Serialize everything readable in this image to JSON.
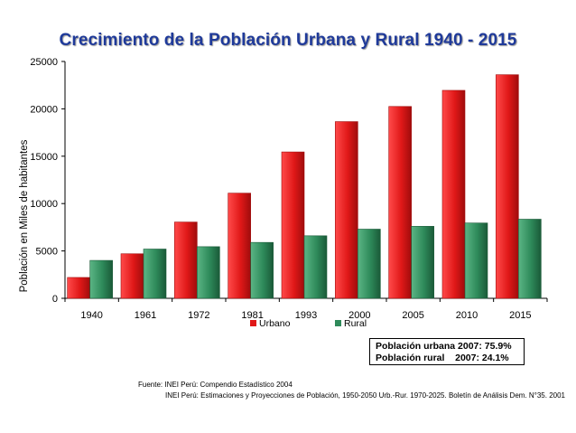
{
  "title": "Crecimiento de la Población Urbana y Rural 1940 - 2015",
  "info_box": {
    "line1": "Población urbana 2007: 75.9%",
    "line2": "Población rural    2007: 24.1%"
  },
  "source": {
    "line1": "Fuente: INEI Perú: Compendio Estadístico 2004",
    "line2": "INEI Perú: Estimaciones y Proyecciones de Población, 1950-2050 Urb.-Rur. 1970-2025. Boletín de Análisis Dem. N°35. 2001"
  },
  "colors": {
    "urbano": "#e01818",
    "urbano_dark": "#a00c0c",
    "rural": "#2e8a5a",
    "rural_dark": "#1a5a38",
    "title": "#1f3a9a"
  },
  "chart_data": {
    "type": "bar",
    "title": "Crecimiento de la Población Urbana y Rural 1940 - 2015",
    "xlabel": "",
    "ylabel": "Población en Miles de habitantes",
    "categories": [
      "1940",
      "1961",
      "1972",
      "1981",
      "1993",
      "2000",
      "2005",
      "2010",
      "2015"
    ],
    "series": [
      {
        "name": "Urbano",
        "values": [
          2200,
          4700,
          8050,
          11100,
          15450,
          18650,
          20250,
          21950,
          23600
        ]
      },
      {
        "name": "Rural",
        "values": [
          4000,
          5200,
          5450,
          5900,
          6600,
          7300,
          7600,
          7950,
          8350
        ]
      }
    ],
    "ylim": [
      0,
      25000
    ],
    "yticks": [
      0,
      5000,
      10000,
      15000,
      20000,
      25000
    ],
    "grid": false,
    "legend": "bottom-center"
  }
}
